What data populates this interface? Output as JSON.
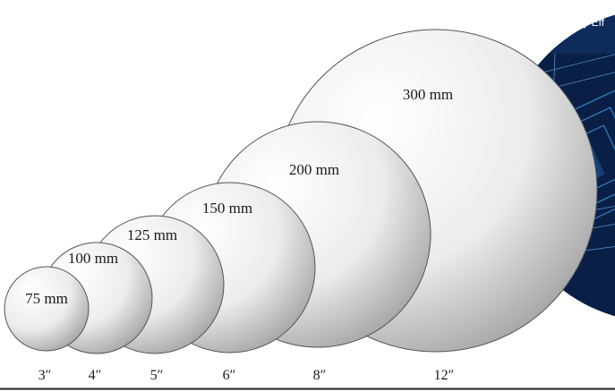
{
  "wafers": [
    {
      "label": "300 mm"
    },
    {
      "label": "200 mm"
    },
    {
      "label": "150 mm"
    },
    {
      "label": "125 mm"
    },
    {
      "label": "100 mm"
    },
    {
      "label": "75 mm"
    }
  ],
  "inch_labels": [
    "3″",
    "4″",
    "5″",
    "6″",
    "8″",
    "12″"
  ],
  "banner": {
    "text": "Highly Eff"
  },
  "colors": {
    "wafer_edge": "#555555",
    "wafer_light": "#ffffff",
    "wafer_dark": "#9a9a9a",
    "chip_bg": "#0a1f45",
    "chip_line": "#3a8fd6"
  }
}
